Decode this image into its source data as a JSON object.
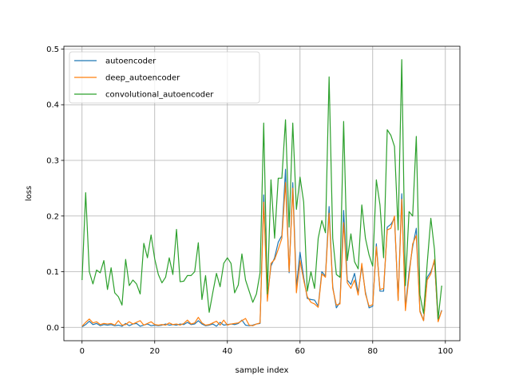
{
  "chart_data": {
    "type": "line",
    "title": "",
    "xlabel": "sample index",
    "ylabel": "loss",
    "xlim": [
      -5,
      104
    ],
    "ylim": [
      -0.024,
      0.505
    ],
    "xticks": [
      0,
      20,
      40,
      60,
      80,
      100
    ],
    "yticks": [
      0.0,
      0.1,
      0.2,
      0.3,
      0.4,
      0.5
    ],
    "xtick_labels": [
      "0",
      "20",
      "40",
      "60",
      "80",
      "100"
    ],
    "ytick_labels": [
      "0.0",
      "0.1",
      "0.2",
      "0.3",
      "0.4",
      "0.5"
    ],
    "grid": true,
    "legend_position": "upper-left",
    "series": [
      {
        "name": "autoencoder",
        "color": "#1f77b4",
        "values": [
          0.001,
          0.005,
          0.011,
          0.005,
          0.007,
          0.003,
          0.005,
          0.004,
          0.005,
          0.003,
          0.004,
          0.002,
          0.007,
          0.003,
          0.006,
          0.007,
          0.002,
          0.004,
          0.006,
          0.003,
          0.004,
          0.003,
          0.004,
          0.006,
          0.004,
          0.005,
          0.004,
          0.006,
          0.005,
          0.009,
          0.005,
          0.006,
          0.012,
          0.006,
          0.003,
          0.004,
          0.006,
          0.002,
          0.009,
          0.004,
          0.005,
          0.006,
          0.005,
          0.007,
          0.013,
          0.004,
          0.003,
          0.004,
          0.006,
          0.007,
          0.238,
          0.055,
          0.11,
          0.125,
          0.153,
          0.165,
          0.284,
          0.098,
          0.26,
          0.072,
          0.135,
          0.09,
          0.052,
          0.05,
          0.049,
          0.038,
          0.1,
          0.092,
          0.217,
          0.073,
          0.035,
          0.045,
          0.21,
          0.085,
          0.077,
          0.097,
          0.062,
          0.11,
          0.063,
          0.035,
          0.038,
          0.15,
          0.065,
          0.065,
          0.18,
          0.185,
          0.196,
          0.05,
          0.24,
          0.035,
          0.1,
          0.145,
          0.178,
          0.03,
          0.012,
          0.09,
          0.1,
          0.118,
          0.012,
          0.031
        ]
      },
      {
        "name": "deep_autoencoder",
        "color": "#ff7f0e",
        "values": [
          0.002,
          0.009,
          0.015,
          0.008,
          0.01,
          0.005,
          0.007,
          0.006,
          0.007,
          0.004,
          0.012,
          0.004,
          0.005,
          0.01,
          0.006,
          0.009,
          0.012,
          0.004,
          0.007,
          0.01,
          0.005,
          0.004,
          0.005,
          0.004,
          0.008,
          0.005,
          0.006,
          0.004,
          0.007,
          0.013,
          0.006,
          0.008,
          0.018,
          0.008,
          0.004,
          0.005,
          0.008,
          0.011,
          0.004,
          0.013,
          0.004,
          0.006,
          0.007,
          0.008,
          0.012,
          0.016,
          0.004,
          0.003,
          0.006,
          0.008,
          0.225,
          0.047,
          0.115,
          0.122,
          0.14,
          0.16,
          0.26,
          0.1,
          0.25,
          0.062,
          0.12,
          0.085,
          0.055,
          0.045,
          0.042,
          0.036,
          0.096,
          0.09,
          0.205,
          0.07,
          0.04,
          0.042,
          0.188,
          0.08,
          0.07,
          0.085,
          0.058,
          0.115,
          0.06,
          0.038,
          0.041,
          0.145,
          0.068,
          0.07,
          0.175,
          0.178,
          0.2,
          0.048,
          0.23,
          0.03,
          0.092,
          0.15,
          0.165,
          0.028,
          0.012,
          0.085,
          0.096,
          0.122,
          0.01,
          0.03
        ]
      },
      {
        "name": "convolutional_autoencoder",
        "color": "#2ca02c",
        "values": [
          0.085,
          0.242,
          0.1,
          0.078,
          0.103,
          0.098,
          0.12,
          0.068,
          0.107,
          0.062,
          0.055,
          0.04,
          0.122,
          0.075,
          0.085,
          0.078,
          0.06,
          0.151,
          0.125,
          0.166,
          0.123,
          0.095,
          0.08,
          0.09,
          0.125,
          0.095,
          0.176,
          0.082,
          0.083,
          0.093,
          0.093,
          0.1,
          0.152,
          0.05,
          0.093,
          0.027,
          0.063,
          0.097,
          0.073,
          0.115,
          0.125,
          0.115,
          0.062,
          0.076,
          0.132,
          0.085,
          0.065,
          0.045,
          0.06,
          0.098,
          0.367,
          0.06,
          0.265,
          0.16,
          0.268,
          0.268,
          0.373,
          0.18,
          0.367,
          0.212,
          0.27,
          0.225,
          0.065,
          0.1,
          0.07,
          0.16,
          0.192,
          0.17,
          0.45,
          0.16,
          0.095,
          0.09,
          0.37,
          0.12,
          0.168,
          0.118,
          0.105,
          0.22,
          0.16,
          0.13,
          0.11,
          0.265,
          0.22,
          0.125,
          0.355,
          0.345,
          0.325,
          0.175,
          0.481,
          0.075,
          0.208,
          0.2,
          0.343,
          0.058,
          0.025,
          0.115,
          0.196,
          0.14,
          0.015,
          0.075
        ]
      }
    ]
  }
}
